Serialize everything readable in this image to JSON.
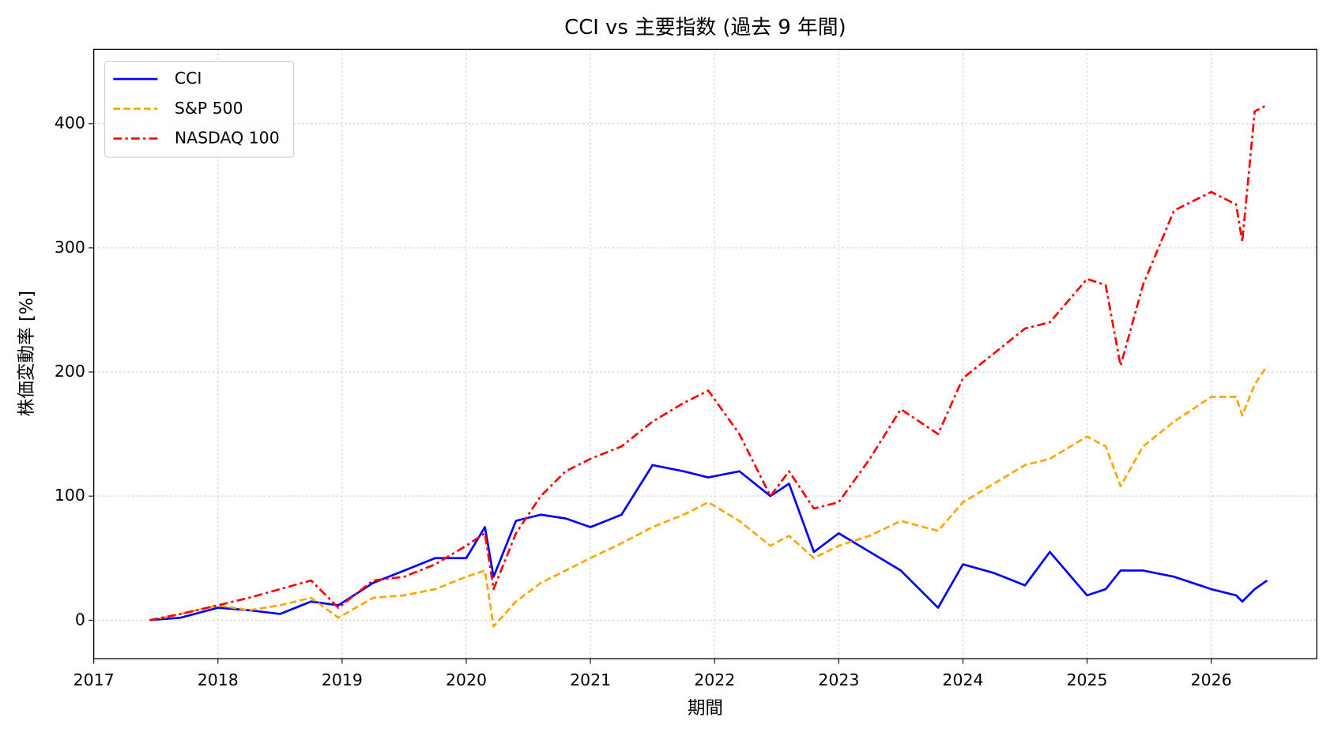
{
  "chart_data": {
    "type": "line",
    "title": "CCI vs 主要指数 (過去 9 年間)",
    "xlabel": "期間",
    "ylabel": "株価変動率 [%]",
    "x": [
      2017.45,
      2017.7,
      2018.0,
      2018.25,
      2018.5,
      2018.75,
      2018.97,
      2019.25,
      2019.5,
      2019.75,
      2020.0,
      2020.15,
      2020.22,
      2020.4,
      2020.6,
      2020.8,
      2021.0,
      2021.25,
      2021.5,
      2021.75,
      2021.95,
      2022.2,
      2022.45,
      2022.6,
      2022.8,
      2023.0,
      2023.25,
      2023.5,
      2023.8,
      2024.0,
      2024.25,
      2024.5,
      2024.7,
      2025.0,
      2025.15,
      2025.27,
      2025.45,
      2025.7,
      2026.0,
      2026.2,
      2026.25,
      2026.35,
      2026.45
    ],
    "series": [
      {
        "name": "CCI",
        "color": "#0000ff",
        "dash": "solid",
        "values": [
          0,
          2,
          10,
          8,
          5,
          15,
          12,
          30,
          40,
          50,
          50,
          75,
          35,
          80,
          85,
          82,
          75,
          85,
          125,
          120,
          115,
          120,
          100,
          110,
          55,
          70,
          55,
          40,
          10,
          45,
          38,
          28,
          55,
          20,
          25,
          40,
          40,
          35,
          25,
          20,
          15,
          25,
          32
        ]
      },
      {
        "name": "S&P 500",
        "color": "#ffa500",
        "dash": "dashed",
        "values": [
          0,
          5,
          12,
          8,
          12,
          18,
          2,
          18,
          20,
          25,
          35,
          40,
          -5,
          15,
          30,
          40,
          50,
          62,
          75,
          85,
          95,
          80,
          60,
          68,
          50,
          60,
          68,
          80,
          72,
          95,
          110,
          125,
          130,
          148,
          140,
          108,
          140,
          160,
          180,
          180,
          165,
          190,
          205
        ]
      },
      {
        "name": "NASDAQ 100",
        "color": "#ff0000",
        "dash": "dashdot",
        "values": [
          0,
          5,
          12,
          18,
          25,
          32,
          10,
          32,
          35,
          45,
          60,
          70,
          25,
          70,
          100,
          120,
          130,
          140,
          160,
          175,
          185,
          150,
          100,
          120,
          90,
          95,
          130,
          170,
          150,
          195,
          215,
          235,
          240,
          275,
          270,
          205,
          270,
          330,
          345,
          335,
          305,
          410,
          415
        ]
      }
    ],
    "xlim": [
      2017,
      2026.85
    ],
    "xticks": [
      2017,
      2018,
      2019,
      2020,
      2021,
      2022,
      2023,
      2024,
      2025,
      2026
    ],
    "ylim": [
      -31,
      460
    ],
    "yticks": [
      0,
      100,
      200,
      300,
      400
    ],
    "grid": true,
    "legend": "upper left"
  }
}
